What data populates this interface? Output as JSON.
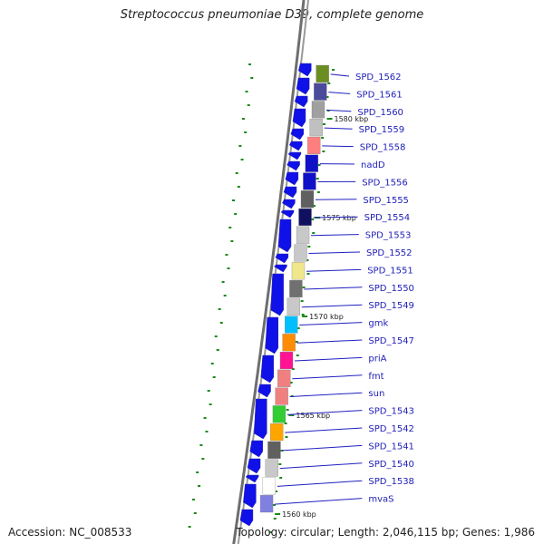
{
  "title": "Streptococcus pneumoniae D39, complete genome",
  "accession": "Accession: NC_008533",
  "topology": "Topology: circular; Length: 2,046,115 bp; Genes: 1,986",
  "colors": {
    "forward_cds": "#1010e8",
    "label": "#2020b8",
    "leader_line": "#2020c0",
    "backbone": "#6e6e6e",
    "tick": "#1a8a1a"
  },
  "kbp_ticks": [
    "1580 kbp",
    "1575 kbp",
    "1570 kbp",
    "1565 kbp",
    "1560 kbp"
  ],
  "genes": [
    {
      "label": "SPD_1562",
      "color": "#6b8e23"
    },
    {
      "label": "SPD_1561",
      "color": "#4b4b9b"
    },
    {
      "label": "SPD_1560",
      "color": "#a0a0a0"
    },
    {
      "label": "SPD_1559",
      "color": "#c0c0c0"
    },
    {
      "label": "SPD_1558",
      "color": "#ff7f7f"
    },
    {
      "label": "nadD",
      "color": "#1010c8"
    },
    {
      "label": "SPD_1556",
      "color": "#1010c8"
    },
    {
      "label": "SPD_1555",
      "color": "#606060"
    },
    {
      "label": "SPD_1554",
      "color": "#101060"
    },
    {
      "label": "SPD_1553",
      "color": "#c8c8c8"
    },
    {
      "label": "SPD_1552",
      "color": "#c8c8c8"
    },
    {
      "label": "SPD_1551",
      "color": "#f0e68c"
    },
    {
      "label": "SPD_1550",
      "color": "#707070"
    },
    {
      "label": "SPD_1549",
      "color": "#c8c8c8"
    },
    {
      "label": "gmk",
      "color": "#00bfff"
    },
    {
      "label": "SPD_1547",
      "color": "#ff8c00"
    },
    {
      "label": "priA",
      "color": "#ff1493"
    },
    {
      "label": "fmt",
      "color": "#f08080"
    },
    {
      "label": "sun",
      "color": "#f08080"
    },
    {
      "label": "SPD_1543",
      "color": "#32cd32"
    },
    {
      "label": "SPD_1542",
      "color": "#ffa500"
    },
    {
      "label": "SPD_1541",
      "color": "#606060"
    },
    {
      "label": "SPD_1540",
      "color": "#c8c8c8"
    },
    {
      "label": "SPD_1538",
      "color": "#ffffff"
    },
    {
      "label": "mvaS",
      "color": "#8080e0"
    }
  ]
}
